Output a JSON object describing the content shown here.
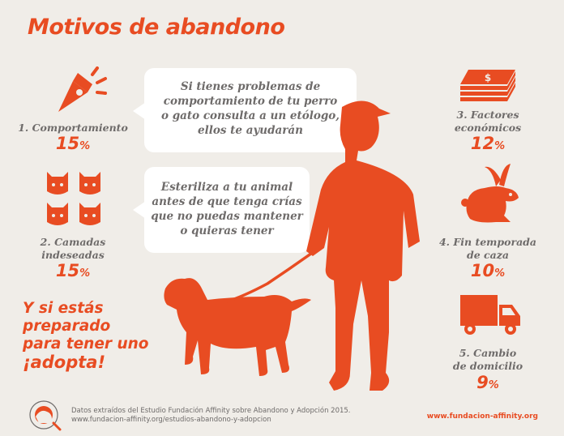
{
  "title": "Motivos de abandono",
  "reasons": [
    {
      "label_line1": "1. Comportamiento",
      "label_line2": "",
      "percent": "15",
      "unit": "%"
    },
    {
      "label_line1": "2. Camadas",
      "label_line2": "indeseadas",
      "percent": "15",
      "unit": "%"
    },
    {
      "label_line1": "3. Factores",
      "label_line2": "económicos",
      "percent": "12",
      "unit": "%"
    },
    {
      "label_line1": "4. Fin temporada",
      "label_line2": "de caza",
      "percent": "10",
      "unit": "%"
    },
    {
      "label_line1": "5. Cambio",
      "label_line2": "de domicilio",
      "percent": "9",
      "unit": "%"
    }
  ],
  "bubbles": [
    {
      "lines": [
        "Si tienes problemas de",
        "comportamiento de tu perro",
        "o gato consulta a un etólogo,",
        "ellos te ayudarán"
      ]
    },
    {
      "lines": [
        "Esteriliza a tu animal",
        "antes de que tenga crías",
        "que no puedas mantener",
        "o quieras tener"
      ]
    }
  ],
  "cta": {
    "lines": [
      "Y si estás",
      "preparado",
      "para tener uno"
    ],
    "emphasis": "¡adopta!"
  },
  "footer": {
    "line1": "Datos extraídos del Estudio Fundación Affinity sobre Abandono y Adopción 2015.",
    "line2": "www.fundacion-affinity.org/estudios-abandono-y-adopcion"
  },
  "website": "www.fundacion-affinity.org",
  "icons": {
    "behavior": "megaphone-icon",
    "litters": "cat-faces-icon",
    "economic": "money-stack-icon",
    "hunting": "rabbit-icon",
    "moving": "truck-icon",
    "logo": "fundacion-affinity-logo"
  },
  "colors": {
    "accent": "#e84c22",
    "text": "#6e6b6a",
    "background": "#f0ede8"
  }
}
